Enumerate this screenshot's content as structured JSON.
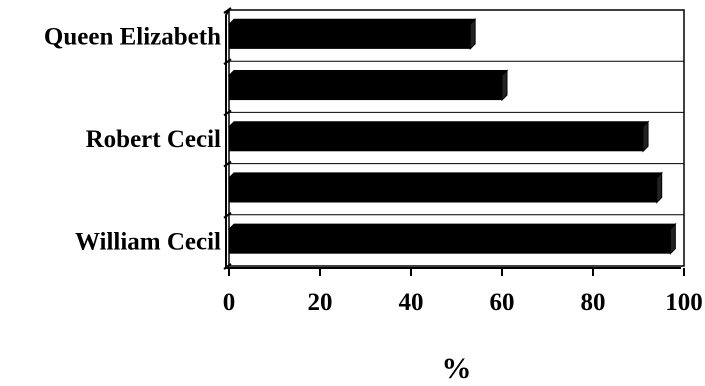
{
  "chart_data": {
    "type": "bar",
    "orientation": "horizontal",
    "categories": [
      "Queen Elizabeth",
      "",
      "Robert Cecil",
      "",
      "William Cecil"
    ],
    "values": [
      53,
      60,
      91,
      94,
      97
    ],
    "xlabel": "%",
    "ylabel": "",
    "xlim": [
      0,
      100
    ],
    "xticks": [
      0,
      20,
      40,
      60,
      80,
      100
    ],
    "grid": "horizontal lines between categories",
    "bar_color": "#000000",
    "style": "3d-shadow bars"
  }
}
